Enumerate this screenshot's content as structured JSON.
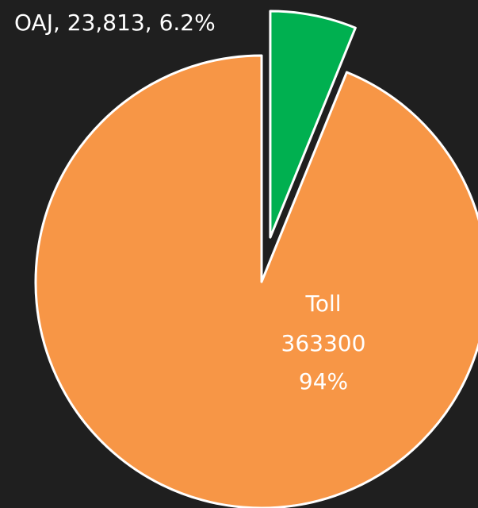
{
  "chart_data": {
    "type": "pie",
    "categories": [
      "OAJ",
      "Toll"
    ],
    "values": [
      23813,
      363300
    ],
    "value_labels": [
      "23,813",
      "363300"
    ],
    "percents": [
      6.2,
      94
    ],
    "percent_labels": [
      "6.2%",
      "94%"
    ],
    "colors": [
      "#00b050",
      "#f79646"
    ],
    "explode": [
      0.2,
      0
    ]
  }
}
